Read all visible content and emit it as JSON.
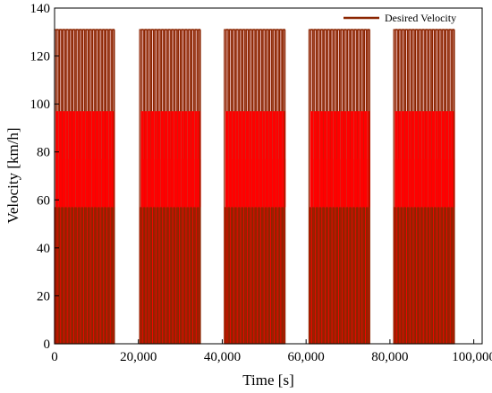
{
  "chart_data": {
    "type": "line",
    "title": "",
    "xlabel": "Time [s]",
    "ylabel": "Velocity [km/h]",
    "xlim": [
      0,
      102000
    ],
    "ylim": [
      0,
      140
    ],
    "x_ticks": [
      0,
      20000,
      40000,
      60000,
      80000,
      100000
    ],
    "x_tick_labels": [
      "0",
      "20,000",
      "40,000",
      "60,000",
      "80,000",
      "100,000"
    ],
    "y_ticks": [
      0,
      20,
      40,
      60,
      80,
      100,
      120,
      140
    ],
    "y_tick_labels": [
      "0",
      "20",
      "40",
      "60",
      "80",
      "100",
      "120",
      "140"
    ],
    "grid": false,
    "legend_position": "top-right",
    "fill_color": "#ff0000",
    "line_color": "#8b2500",
    "series": [
      {
        "name": "Desired Velocity",
        "color": "#8b2500",
        "cycles": [
          {
            "start": 0,
            "end": 14200
          },
          {
            "start": 20300,
            "end": 34700
          },
          {
            "start": 40500,
            "end": 54900
          },
          {
            "start": 60700,
            "end": 75100
          },
          {
            "start": 80900,
            "end": 95300
          }
        ],
        "spikes_per_cycle": 18,
        "spike_peaks": [
          131,
          131,
          131,
          131,
          131,
          131,
          131,
          131,
          131,
          131,
          131,
          131,
          131,
          131,
          131,
          131,
          131,
          131
        ],
        "plateau_levels": [
          57,
          77,
          97
        ]
      }
    ]
  }
}
